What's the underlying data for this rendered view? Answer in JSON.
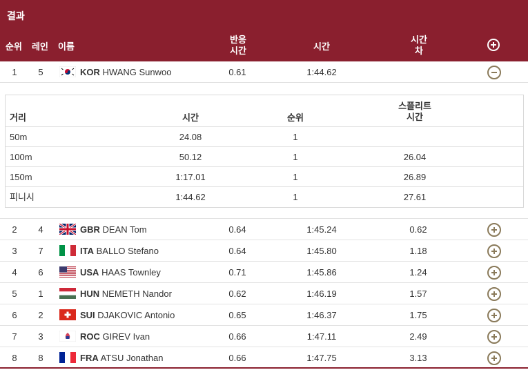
{
  "header": {
    "title": "결과",
    "columns": {
      "rank": "순위",
      "lane": "레인",
      "name": "이름",
      "reaction_line1": "반응",
      "reaction_line2": "시간",
      "time": "시간",
      "diff_line1": "시간",
      "diff_line2": "차"
    }
  },
  "expanded": {
    "rank": "1",
    "lane": "5",
    "country": "KOR",
    "name": "HWANG Sunwoo",
    "reaction": "0.61",
    "time": "1:44.62",
    "diff": "",
    "flag": "kor-flag-icon"
  },
  "splits": {
    "headers": {
      "distance": "거리",
      "time": "시간",
      "rank": "순위",
      "split_line1": "스플리트",
      "split_line2": "시간"
    },
    "rows": [
      {
        "distance": "50m",
        "time": "24.08",
        "rank": "1",
        "split": ""
      },
      {
        "distance": "100m",
        "time": "50.12",
        "rank": "1",
        "split": "26.04"
      },
      {
        "distance": "150m",
        "time": "1:17.01",
        "rank": "1",
        "split": "26.89"
      },
      {
        "distance": "피니시",
        "time": "1:44.62",
        "rank": "1",
        "split": "27.61"
      }
    ]
  },
  "results": [
    {
      "rank": "2",
      "lane": "4",
      "country": "GBR",
      "name": "DEAN Tom",
      "reaction": "0.64",
      "time": "1:45.24",
      "diff": "0.62",
      "flag": "gbr-flag-icon"
    },
    {
      "rank": "3",
      "lane": "7",
      "country": "ITA",
      "name": "BALLO Stefano",
      "reaction": "0.64",
      "time": "1:45.80",
      "diff": "1.18",
      "flag": "ita-flag-icon"
    },
    {
      "rank": "4",
      "lane": "6",
      "country": "USA",
      "name": "HAAS Townley",
      "reaction": "0.71",
      "time": "1:45.86",
      "diff": "1.24",
      "flag": "usa-flag-icon"
    },
    {
      "rank": "5",
      "lane": "1",
      "country": "HUN",
      "name": "NEMETH Nandor",
      "reaction": "0.62",
      "time": "1:46.19",
      "diff": "1.57",
      "flag": "hun-flag-icon"
    },
    {
      "rank": "6",
      "lane": "2",
      "country": "SUI",
      "name": "DJAKOVIC Antonio",
      "reaction": "0.65",
      "time": "1:46.37",
      "diff": "1.75",
      "flag": "sui-flag-icon"
    },
    {
      "rank": "7",
      "lane": "3",
      "country": "ROC",
      "name": "GIREV Ivan",
      "reaction": "0.66",
      "time": "1:47.11",
      "diff": "2.49",
      "flag": "roc-flag-icon"
    },
    {
      "rank": "8",
      "lane": "8",
      "country": "FRA",
      "name": "ATSU Jonathan",
      "reaction": "0.66",
      "time": "1:47.75",
      "diff": "3.13",
      "flag": "fra-flag-icon"
    }
  ],
  "colors": {
    "header_bg": "#8a1f2e",
    "icon": "#8a7a5a"
  }
}
